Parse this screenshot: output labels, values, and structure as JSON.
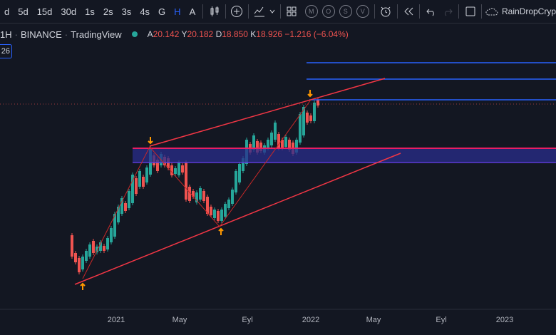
{
  "toolbar": {
    "timeframes": [
      {
        "label": "d",
        "active": false
      },
      {
        "label": "5d",
        "active": false
      },
      {
        "label": "15d",
        "active": false
      },
      {
        "label": "30d",
        "active": false
      },
      {
        "label": "1s",
        "active": false
      },
      {
        "label": "2s",
        "active": false
      },
      {
        "label": "3s",
        "active": false
      },
      {
        "label": "4s",
        "active": false
      },
      {
        "label": "G",
        "active": false
      },
      {
        "label": "H",
        "active": true
      },
      {
        "label": "A",
        "active": false
      }
    ],
    "chart_style_letters": [
      "M",
      "O",
      "S",
      "V"
    ],
    "username": "RainDropCryp"
  },
  "legend": {
    "interval": "1H",
    "exchange": "BINANCE",
    "provider": "TradingView",
    "open_label": "A",
    "open": "20.142",
    "high_label": "Y",
    "high": "20.182",
    "low_label": "D",
    "low": "18.850",
    "close_label": "K",
    "close": "18.926",
    "change": "−1.216 (−6.04%)"
  },
  "badge": "26",
  "colors": {
    "background": "#131722",
    "up": "#26a69a",
    "down": "#ef5350",
    "trendline": "#f23645",
    "hline": "#2962ff",
    "zone_fill": "#2a2e8c",
    "zone_border": "#e91e63",
    "marker": "#ff9800"
  },
  "x_axis": {
    "ticks": [
      "2021",
      "May",
      "Eyl",
      "2022",
      "May",
      "Eyl",
      "2023"
    ]
  },
  "chart_data": {
    "type": "candlestick",
    "x_ticks": [
      "2021",
      "May",
      "Eyl",
      "2022",
      "May",
      "Eyl",
      "2023"
    ],
    "annotations": [
      "ascending channel",
      "horizontal resistance lines",
      "supply zone",
      "pivot arrows"
    ],
    "ylabel": "",
    "xlabel": ""
  }
}
